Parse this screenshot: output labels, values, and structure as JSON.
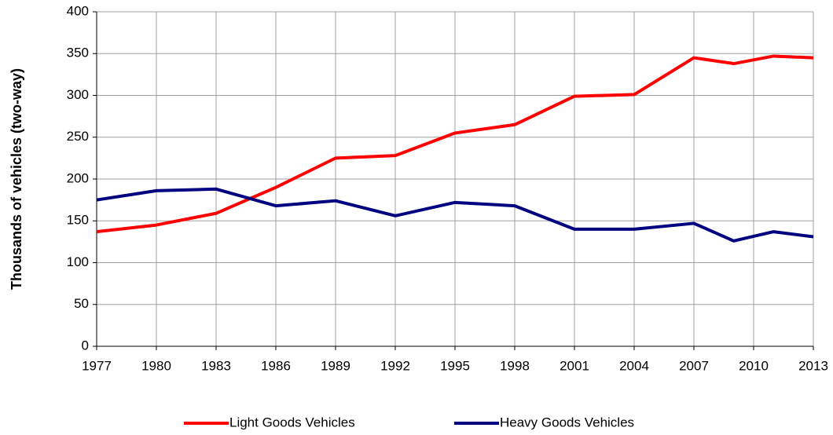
{
  "chart_data": {
    "type": "line",
    "y_label": "Thousands of vehicles (two-way)",
    "x": [
      1977,
      1980,
      1983,
      1986,
      1989,
      1992,
      1995,
      1998,
      2001,
      2004,
      2007,
      2009,
      2011,
      2013
    ],
    "series": [
      {
        "name": "Light Goods Vehicles",
        "color": "#ff0000",
        "values": [
          137,
          145,
          159,
          190,
          225,
          228,
          255,
          265,
          299,
          301,
          345,
          338,
          347,
          345
        ]
      },
      {
        "name": "Heavy Goods Vehicles",
        "color": "#000080",
        "values": [
          175,
          186,
          188,
          168,
          174,
          156,
          172,
          168,
          140,
          140,
          147,
          126,
          137,
          131
        ]
      }
    ],
    "xlim": [
      1977,
      2013
    ],
    "xticks": [
      1977,
      1980,
      1983,
      1986,
      1989,
      1992,
      1995,
      1998,
      2001,
      2004,
      2007,
      2010,
      2013
    ],
    "ylim": [
      0,
      400
    ],
    "yticks": [
      0,
      50,
      100,
      150,
      200,
      250,
      300,
      350,
      400
    ],
    "grid": true,
    "legend": "bottom"
  }
}
